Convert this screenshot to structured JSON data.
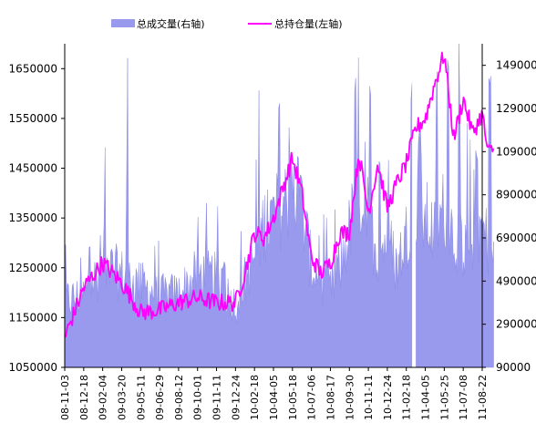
{
  "chart_data": {
    "type": "bar+line",
    "legend": [
      {
        "name": "总成交量(右轴)",
        "color": "#9999ee",
        "kind": "bar",
        "axis": "right"
      },
      {
        "name": "总持仓量(左轴)",
        "color": "#ff00ff",
        "kind": "line",
        "axis": "left"
      }
    ],
    "left_axis": {
      "min": 1050000,
      "max": 1700000,
      "ticks": [
        1050000,
        1150000,
        1250000,
        1350000,
        1450000,
        1550000,
        1650000
      ]
    },
    "right_axis": {
      "min": 90000,
      "max": 1590000,
      "ticks": [
        90000,
        290000,
        490000,
        690000,
        890000,
        1090000,
        1290000,
        1490000
      ]
    },
    "x_ticks": [
      "08-11-03",
      "08-12-18",
      "09-02-04",
      "09-03-20",
      "09-05-11",
      "09-06-29",
      "09-08-12",
      "09-10-01",
      "09-11-11",
      "09-12-24",
      "10-02-18",
      "10-04-05",
      "10-05-18",
      "10-07-06",
      "10-08-17",
      "10-09-30",
      "10-11-11",
      "10-12-24",
      "11-02-18",
      "11-04-05",
      "11-05-25",
      "11-07-08",
      "11-08-22"
    ],
    "line_anchors": [
      [
        0,
        1110000
      ],
      [
        1,
        1210000
      ],
      [
        2,
        1260000
      ],
      [
        3,
        1220000
      ],
      [
        4,
        1160000
      ],
      [
        5,
        1165000
      ],
      [
        6,
        1180000
      ],
      [
        7,
        1190000
      ],
      [
        8,
        1180000
      ],
      [
        9,
        1180000
      ],
      [
        9.5,
        1240000
      ],
      [
        10,
        1320000
      ],
      [
        10.5,
        1310000
      ],
      [
        11,
        1350000
      ],
      [
        11.5,
        1410000
      ],
      [
        12,
        1470000
      ],
      [
        12.5,
        1400000
      ],
      [
        13,
        1270000
      ],
      [
        13.5,
        1240000
      ],
      [
        14,
        1260000
      ],
      [
        14.5,
        1320000
      ],
      [
        15,
        1320000
      ],
      [
        15.5,
        1480000
      ],
      [
        16,
        1360000
      ],
      [
        16.5,
        1460000
      ],
      [
        17,
        1370000
      ],
      [
        17.5,
        1420000
      ],
      [
        18,
        1460000
      ],
      [
        18.5,
        1530000
      ],
      [
        19,
        1550000
      ],
      [
        19.5,
        1620000
      ],
      [
        20,
        1680000
      ],
      [
        20.5,
        1510000
      ],
      [
        21,
        1590000
      ],
      [
        21.5,
        1520000
      ],
      [
        22,
        1560000
      ],
      [
        22.3,
        1480000
      ],
      [
        22.6,
        1490000
      ]
    ],
    "volume_anchors": [
      [
        0,
        400000
      ],
      [
        1,
        420000
      ],
      [
        2,
        560000
      ],
      [
        3,
        520000
      ],
      [
        4,
        470000
      ],
      [
        5,
        420000
      ],
      [
        6,
        430000
      ],
      [
        7,
        520000
      ],
      [
        8,
        500000
      ],
      [
        9,
        380000
      ],
      [
        10,
        600000
      ],
      [
        10.5,
        760000
      ],
      [
        11,
        780000
      ],
      [
        11.5,
        850000
      ],
      [
        12,
        900000
      ],
      [
        12.5,
        830000
      ],
      [
        13,
        560000
      ],
      [
        13.5,
        500000
      ],
      [
        14,
        450000
      ],
      [
        14.5,
        540000
      ],
      [
        15,
        720000
      ],
      [
        15.5,
        920000
      ],
      [
        16,
        780000
      ],
      [
        16.5,
        600000
      ],
      [
        17,
        700000
      ],
      [
        17.5,
        550000
      ],
      [
        18,
        700000
      ],
      [
        18.5,
        820000
      ],
      [
        19,
        780000
      ],
      [
        19.5,
        700000
      ],
      [
        20,
        830000
      ],
      [
        20.5,
        700000
      ],
      [
        21,
        650000
      ],
      [
        21.5,
        700000
      ],
      [
        22,
        720000
      ],
      [
        22.6,
        620000
      ]
    ],
    "volume_spikes": [
      [
        1.3,
        680000
      ],
      [
        2.1,
        780000
      ],
      [
        3.3,
        1020000
      ],
      [
        8.4,
        600000
      ],
      [
        11.3,
        1320000
      ],
      [
        12.3,
        1130000
      ],
      [
        15.3,
        1440000
      ],
      [
        16.1,
        1410000
      ],
      [
        16.6,
        1120000
      ],
      [
        18.3,
        1450000
      ],
      [
        18.7,
        1240000
      ],
      [
        19.6,
        1480000
      ],
      [
        20.2,
        1590000
      ],
      [
        20.8,
        1310000
      ],
      [
        21.7,
        1100000
      ],
      [
        22.4,
        1450000
      ]
    ],
    "volume_gap_index": 18.4
  }
}
